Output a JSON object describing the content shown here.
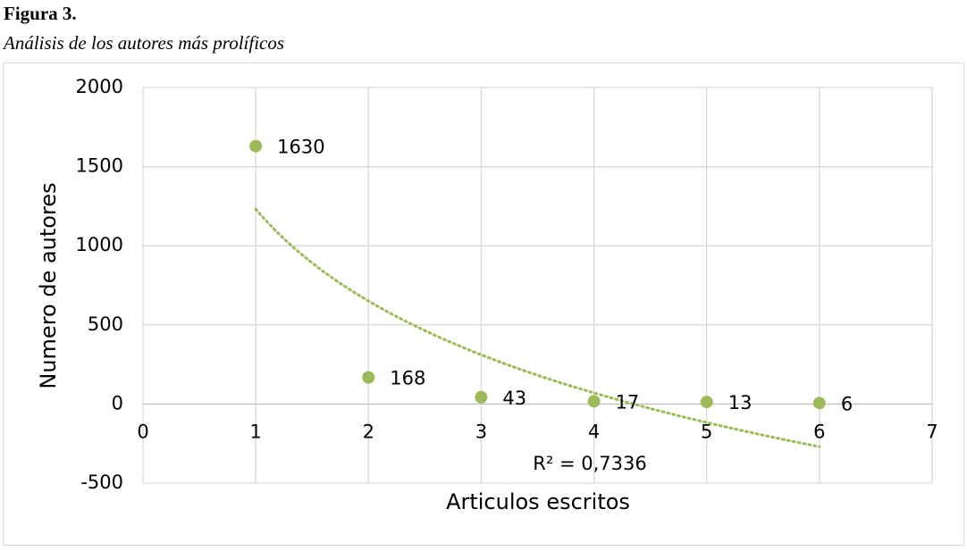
{
  "chart_data": {
    "type": "scatter",
    "title": "Figura 3.",
    "subtitle": "Análisis de los autores más prolíficos",
    "x_label": "Articulos escritos",
    "y_label": "Numero de autores",
    "x": [
      1,
      2,
      3,
      4,
      5,
      6
    ],
    "values": [
      1630,
      168,
      43,
      17,
      13,
      6
    ],
    "color": "#9bbb59",
    "trendline": "logarithmic",
    "trendline_label": "R² = 0,7336",
    "xlim": [
      0,
      7
    ],
    "xticks": [
      0,
      1,
      2,
      3,
      4,
      5,
      6,
      7
    ],
    "ylim": [
      -500,
      2000
    ],
    "yticks": [
      -500,
      0,
      500,
      1000,
      1500,
      2000
    ],
    "grid": true
  }
}
